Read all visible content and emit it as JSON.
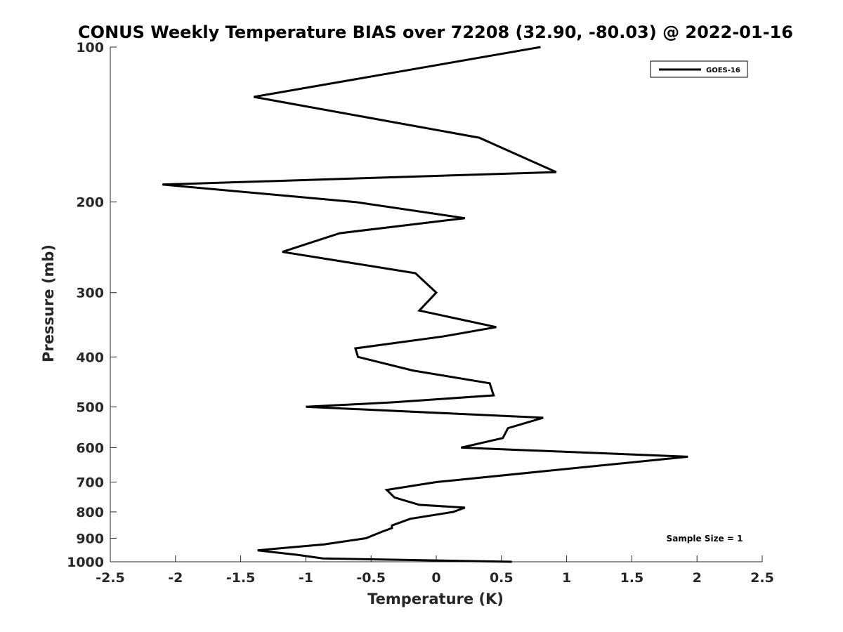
{
  "chart_data": {
    "type": "line",
    "title": "CONUS Weekly Temperature BIAS over 72208 (32.90, -80.03) @ 2022-01-16",
    "xlabel": "Temperature (K)",
    "ylabel": "Pressure (mb)",
    "xlim": [
      -2.5,
      2.5
    ],
    "ylim": [
      1000,
      100
    ],
    "y_scale": "log",
    "y_reversed": true,
    "grid": false,
    "legend_position": "top-right",
    "x_ticks": [
      "-2.5",
      "-2",
      "-1.5",
      "-1",
      "-0.5",
      "0",
      "0.5",
      "1",
      "1.5",
      "2",
      "2.5"
    ],
    "y_ticks": [
      "100",
      "200",
      "300",
      "400",
      "500",
      "600",
      "700",
      "800",
      "900",
      "1000"
    ],
    "series": [
      {
        "name": "GOES-16",
        "color": "#000000",
        "x": [
          0.8,
          -1.4,
          0.33,
          0.92,
          -2.1,
          -0.62,
          0.22,
          -0.74,
          -1.18,
          -0.16,
          0.0,
          -0.13,
          0.46,
          0.05,
          -0.62,
          -0.6,
          -0.18,
          0.41,
          0.44,
          -0.33,
          -1.0,
          0.82,
          0.55,
          0.51,
          0.19,
          1.93,
          0.0,
          -0.38,
          -0.32,
          -0.13,
          0.22,
          0.13,
          -0.2,
          -0.34,
          -0.34,
          -0.42,
          -0.54,
          -0.86,
          -1.37,
          -1.06,
          -0.87,
          0.58
        ],
        "y": [
          100,
          125,
          150,
          175,
          185,
          200,
          215,
          230,
          250,
          275,
          300,
          325,
          350,
          365,
          385,
          400,
          425,
          450,
          475,
          490,
          500,
          525,
          550,
          575,
          600,
          625,
          700,
          725,
          750,
          775,
          785,
          800,
          825,
          850,
          860,
          875,
          900,
          925,
          950,
          970,
          985,
          1000
        ]
      }
    ],
    "annotations": [
      "Sample Size = 1"
    ]
  }
}
